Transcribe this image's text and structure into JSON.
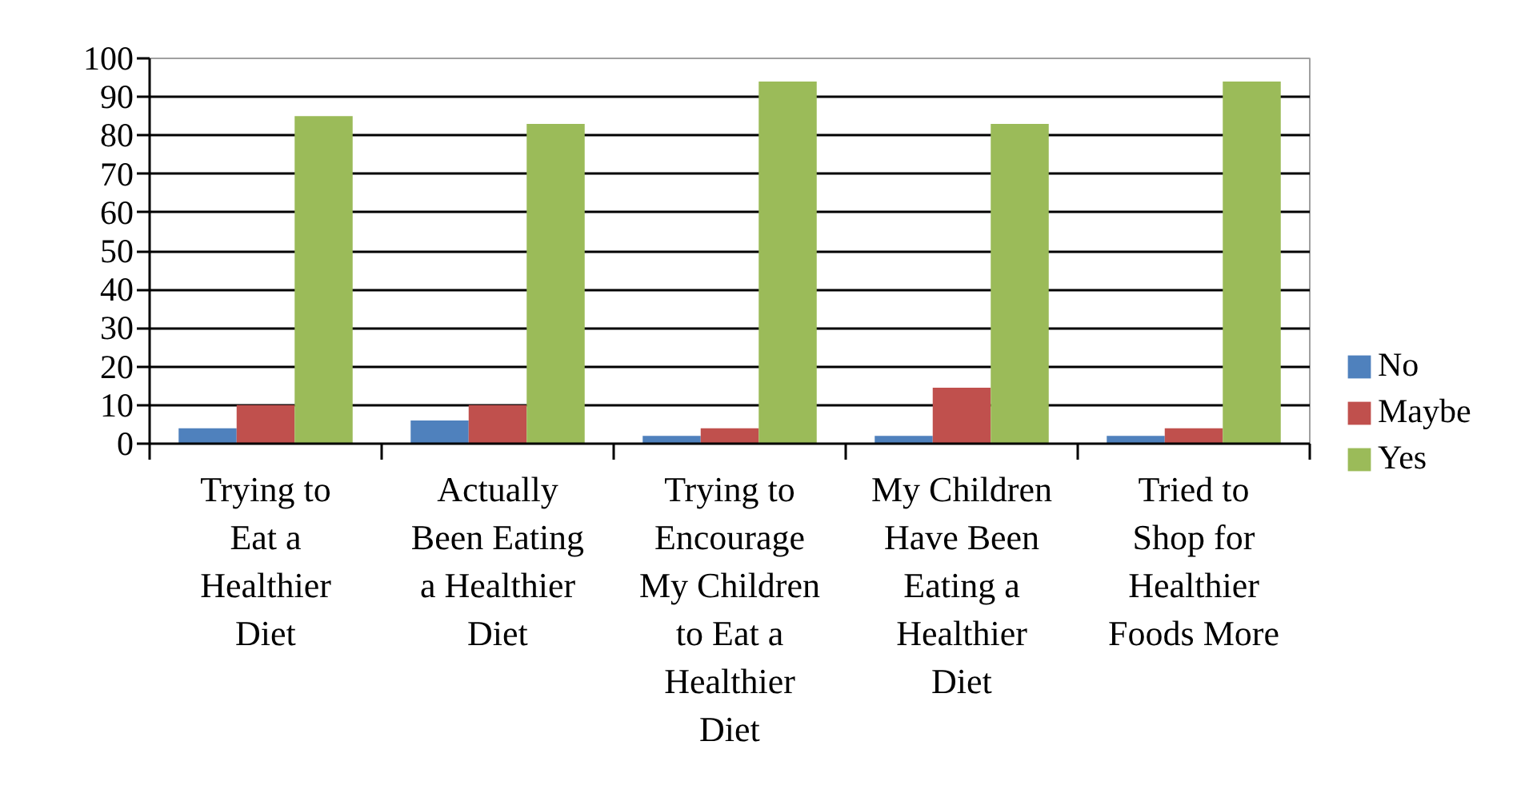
{
  "chart_data": {
    "type": "bar",
    "categories": [
      "Trying to Eat a Healthier Diet",
      "Actually Been Eating a Healthier Diet",
      "Trying to Encourage My Children to Eat a Healthier Diet",
      "My Children Have Been Eating a Healthier Diet",
      "Tried to Shop for Healthier Foods More"
    ],
    "series": [
      {
        "name": "No",
        "color": "#4f81bd",
        "values": [
          4,
          6,
          2,
          2,
          2
        ]
      },
      {
        "name": "Maybe",
        "color": "#c0504d",
        "values": [
          10,
          10,
          4,
          14.5,
          4
        ]
      },
      {
        "name": "Yes",
        "color": "#9bbb59",
        "values": [
          85,
          83,
          94,
          83,
          94
        ]
      }
    ],
    "ylim": [
      0,
      100
    ],
    "yticks": [
      0,
      10,
      20,
      30,
      40,
      50,
      60,
      70,
      80,
      90,
      100
    ],
    "grid": "y",
    "legend": "right"
  }
}
